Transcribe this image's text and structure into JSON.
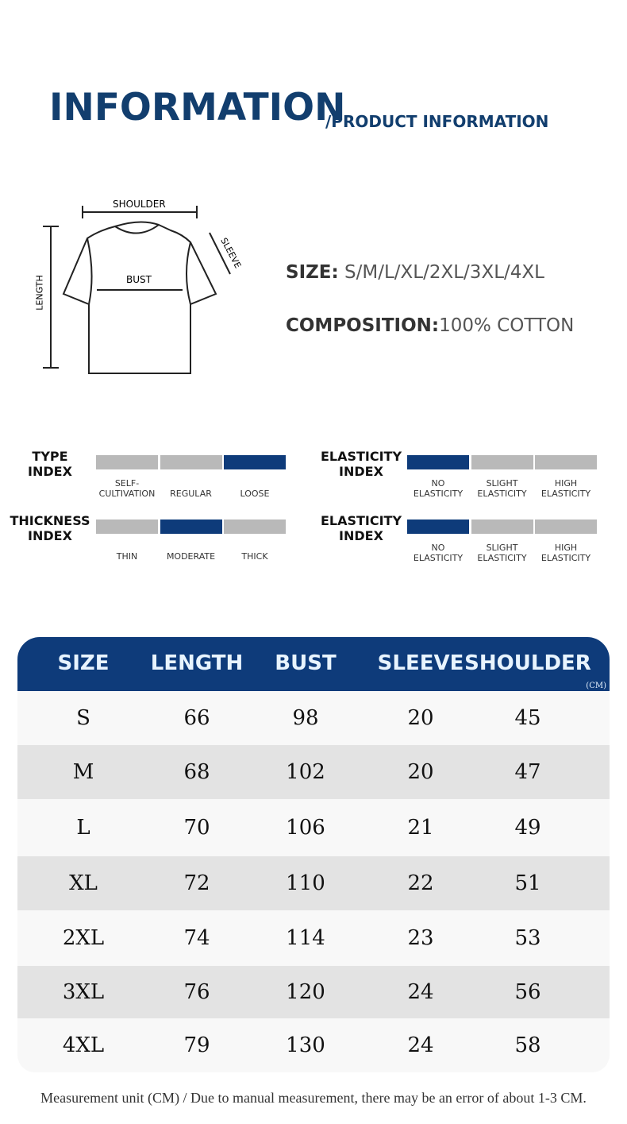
{
  "header": {
    "title": "INFORMATION",
    "subtitle": "/PRODUCT INFORMATION"
  },
  "diagram": {
    "shoulder": "SHOULDER",
    "sleeve": "SLEEVE",
    "bust": "BUST",
    "length": "LENGTH"
  },
  "info": {
    "size_label": "SIZE:",
    "size_value": "S/M/L/XL/2XL/3XL/4XL",
    "composition_label": "COMPOSITION:",
    "composition_value": "100% COTTON"
  },
  "accent": "#0e3b7a",
  "indexes": [
    {
      "label1": "TYPE",
      "label2": "INDEX",
      "options": [
        "SELF-\nCULTIVATION",
        "REGULAR",
        "LOOSE"
      ],
      "selected": 2
    },
    {
      "label1": "ELASTICITY",
      "label2": "INDEX",
      "options": [
        "NO\nELASTICITY",
        "SLIGHT\nELASTICITY",
        "HIGH\nELASTICITY"
      ],
      "selected": 0
    },
    {
      "label1": "THICKNESS",
      "label2": "INDEX",
      "options": [
        "THIN",
        "MODERATE",
        "THICK"
      ],
      "selected": 1
    },
    {
      "label1": "ELASTICITY",
      "label2": "INDEX",
      "options": [
        "NO\nELASTICITY",
        "SLIGHT\nELASTICITY",
        "HIGH\nELASTICITY"
      ],
      "selected": 0
    }
  ],
  "table": {
    "headers": [
      "SIZE",
      "LENGTH",
      "BUST",
      "SLEEVE",
      "SHOULDER"
    ],
    "unit": "(CM)",
    "rows": [
      [
        "S",
        "66",
        "98",
        "20",
        "45"
      ],
      [
        "M",
        "68",
        "102",
        "20",
        "47"
      ],
      [
        "L",
        "70",
        "106",
        "21",
        "49"
      ],
      [
        "XL",
        "72",
        "110",
        "22",
        "51"
      ],
      [
        "2XL",
        "74",
        "114",
        "23",
        "53"
      ],
      [
        "3XL",
        "76",
        "120",
        "24",
        "56"
      ],
      [
        "4XL",
        "79",
        "130",
        "24",
        "58"
      ]
    ]
  },
  "footer": "Measurement unit (CM) / Due to manual measurement, there may be an error of about 1-3 CM."
}
